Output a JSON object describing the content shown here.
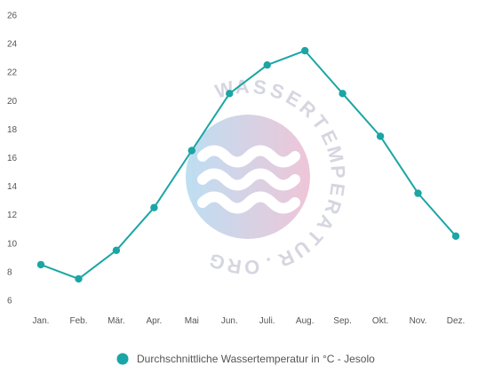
{
  "chart_data": {
    "type": "line",
    "categories": [
      "Jan.",
      "Feb.",
      "Mär.",
      "Apr.",
      "Mai",
      "Jun.",
      "Juli.",
      "Aug.",
      "Sep.",
      "Okt.",
      "Nov.",
      "Dez."
    ],
    "series": [
      {
        "name": "Durchschnittliche Wassertemperatur in °C - Jesolo",
        "values": [
          8.5,
          7.5,
          9.5,
          12.5,
          16.5,
          20.5,
          22.5,
          23.5,
          20.5,
          17.5,
          13.5,
          10.5
        ],
        "color": "#1ba5a5"
      }
    ],
    "ylim": [
      6,
      26
    ],
    "yticks": [
      6,
      8,
      10,
      12,
      14,
      16,
      18,
      20,
      22,
      24,
      26
    ],
    "grid": false,
    "legend": "bottom",
    "title": "",
    "xlabel": "",
    "ylabel": ""
  },
  "watermark": {
    "text": "WASSERTEMPERATUR.ORG",
    "gradient_colors": [
      "#a8d4ee",
      "#e9b3cb"
    ],
    "letter_color": "#c8c9d6"
  }
}
